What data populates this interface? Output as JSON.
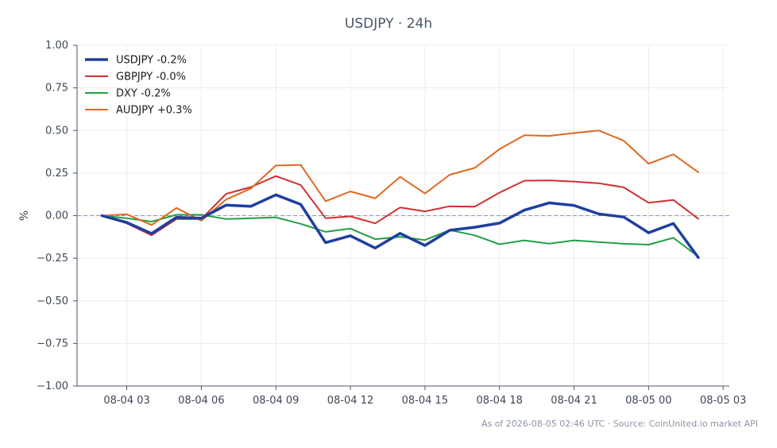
{
  "title": "USDJPY · 24h",
  "footer": "As of 2026-08-05 02:46 UTC · Source: CoinUnited.io market API",
  "chart_data": {
    "type": "line",
    "title": "USDJPY · 24h",
    "xlabel": "",
    "ylabel": "%",
    "ylim": [
      -1.0,
      1.0
    ],
    "yticks": [
      1.0,
      0.75,
      0.5,
      0.25,
      0.0,
      -0.25,
      -0.5,
      -0.75,
      -1.0
    ],
    "ytick_labels": [
      "1.00",
      "0.75",
      "0.50",
      "0.25",
      "0.00",
      "−0.25",
      "−0.50",
      "−0.75",
      "−1.00"
    ],
    "xlim": [
      "2026-08-04 01:00",
      "2026-08-05 03:15"
    ],
    "xticks": [
      "2026-08-04 03:00",
      "2026-08-04 06:00",
      "2026-08-04 09:00",
      "2026-08-04 12:00",
      "2026-08-04 15:00",
      "2026-08-04 18:00",
      "2026-08-04 21:00",
      "2026-08-05 00:00",
      "2026-08-05 03:00"
    ],
    "xtick_labels": [
      "08-04 03",
      "08-04 06",
      "08-04 09",
      "08-04 12",
      "08-04 15",
      "08-04 18",
      "08-04 21",
      "08-05 00",
      "08-05 03"
    ],
    "x": [
      "2026-08-04 02:00",
      "2026-08-04 03:00",
      "2026-08-04 04:00",
      "2026-08-04 05:00",
      "2026-08-04 06:00",
      "2026-08-04 07:00",
      "2026-08-04 08:00",
      "2026-08-04 09:00",
      "2026-08-04 10:00",
      "2026-08-04 11:00",
      "2026-08-04 12:00",
      "2026-08-04 13:00",
      "2026-08-04 14:00",
      "2026-08-04 15:00",
      "2026-08-04 16:00",
      "2026-08-04 17:00",
      "2026-08-04 18:00",
      "2026-08-04 19:00",
      "2026-08-04 20:00",
      "2026-08-04 21:00",
      "2026-08-04 22:00",
      "2026-08-04 23:00",
      "2026-08-05 00:00",
      "2026-08-05 01:00",
      "2026-08-05 02:00"
    ],
    "reference_line": 0.0,
    "grid": true,
    "legend_position": "top-left",
    "series": [
      {
        "name": "USDJPY -0.2%",
        "color": "#1f3fa0",
        "width": 3.5,
        "values": [
          0.0,
          -0.04,
          -0.105,
          -0.01,
          -0.015,
          0.062,
          0.055,
          0.122,
          0.066,
          -0.158,
          -0.118,
          -0.19,
          -0.104,
          -0.175,
          -0.086,
          -0.068,
          -0.044,
          0.032,
          0.075,
          0.06,
          0.01,
          -0.008,
          -0.1,
          -0.046,
          -0.245
        ]
      },
      {
        "name": "GBPJPY -0.0%",
        "color": "#d03030",
        "width": 2,
        "values": [
          0.0,
          -0.045,
          -0.115,
          -0.02,
          -0.02,
          0.128,
          0.168,
          0.232,
          0.18,
          -0.015,
          -0.004,
          -0.045,
          0.048,
          0.025,
          0.055,
          0.052,
          0.135,
          0.205,
          0.207,
          0.2,
          0.19,
          0.166,
          0.076,
          0.092,
          -0.018
        ]
      },
      {
        "name": "DXY -0.2%",
        "color": "#22a045",
        "width": 2,
        "values": [
          0.0,
          -0.015,
          -0.035,
          0.005,
          0.005,
          -0.02,
          -0.015,
          -0.01,
          -0.048,
          -0.095,
          -0.076,
          -0.138,
          -0.124,
          -0.143,
          -0.085,
          -0.115,
          -0.168,
          -0.145,
          -0.164,
          -0.145,
          -0.155,
          -0.165,
          -0.17,
          -0.13,
          -0.24
        ]
      },
      {
        "name": "AUDJPY +0.3%",
        "color": "#e06820",
        "width": 2,
        "values": [
          0.0,
          0.008,
          -0.055,
          0.045,
          -0.03,
          0.095,
          0.16,
          0.294,
          0.298,
          0.085,
          0.142,
          0.102,
          0.228,
          0.13,
          0.24,
          0.28,
          0.39,
          0.472,
          0.468,
          0.485,
          0.5,
          0.44,
          0.305,
          0.36,
          0.255
        ]
      }
    ]
  }
}
